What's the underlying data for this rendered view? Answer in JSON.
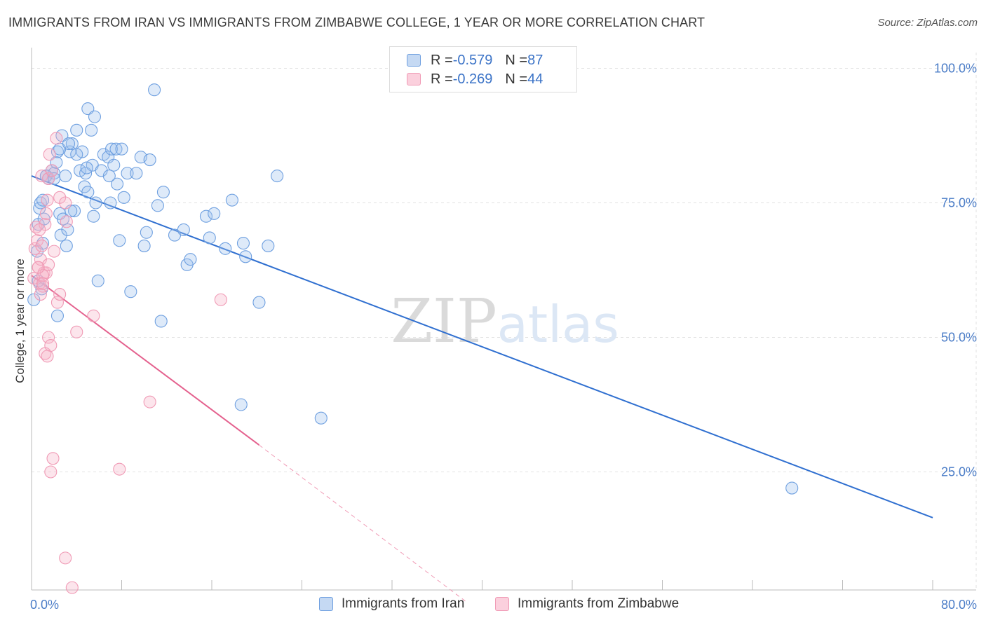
{
  "title": "IMMIGRANTS FROM IRAN VS IMMIGRANTS FROM ZIMBABWE COLLEGE, 1 YEAR OR MORE CORRELATION CHART",
  "source": "Source: ZipAtlas.com",
  "watermark": "ZIPatlas",
  "colors": {
    "iran": "#6fa0e0",
    "iran_line": "#2f6fd0",
    "zimbabwe": "#f09ab5",
    "zimbabwe_line": "#e4618e",
    "tick_text": "#4a7cc7"
  },
  "legend": {
    "rows": [
      {
        "r_label": "R = ",
        "r_value": "-0.579",
        "n_label": "N = ",
        "n_value": "87"
      },
      {
        "r_label": "R = ",
        "r_value": "-0.269",
        "n_label": "N = ",
        "n_value": "44"
      }
    ]
  },
  "bottom_legend": {
    "iran": "Immigrants from Iran",
    "zimbabwe": "Immigrants from Zimbabwe"
  },
  "chart_data": {
    "type": "scatter",
    "title": "IMMIGRANTS FROM IRAN VS IMMIGRANTS FROM ZIMBABWE COLLEGE, 1 YEAR OR MORE CORRELATION CHART",
    "ylabel": "College, 1 year or more",
    "xlabel": "",
    "xlim": [
      0,
      80
    ],
    "ylim": [
      0,
      104
    ],
    "x_tick_labels": [
      "0.0%",
      "80.0%"
    ],
    "y_ticks": [
      25,
      50,
      75,
      100
    ],
    "y_tick_labels": [
      "25.0%",
      "50.0%",
      "75.0%",
      "100.0%"
    ],
    "grid": true,
    "legend_position": "top-center",
    "series": [
      {
        "name": "Immigrants from Iran",
        "R": -0.579,
        "N": 87,
        "trend": {
          "x": [
            0,
            80
          ],
          "y": [
            80.0,
            16.5
          ]
        },
        "points": [
          [
            0.2,
            57.0
          ],
          [
            0.5,
            66.0
          ],
          [
            0.6,
            71.0
          ],
          [
            0.7,
            74.0
          ],
          [
            0.8,
            75.0
          ],
          [
            1.0,
            75.5
          ],
          [
            0.9,
            59.0
          ],
          [
            1.1,
            72.0
          ],
          [
            1.3,
            80.0
          ],
          [
            1.5,
            79.5
          ],
          [
            1.8,
            81.0
          ],
          [
            2.0,
            80.5
          ],
          [
            2.2,
            82.5
          ],
          [
            2.3,
            84.5
          ],
          [
            2.5,
            73.0
          ],
          [
            2.6,
            69.0
          ],
          [
            2.7,
            87.5
          ],
          [
            2.8,
            72.0
          ],
          [
            3.0,
            80.0
          ],
          [
            3.1,
            67.0
          ],
          [
            3.2,
            70.0
          ],
          [
            3.4,
            84.5
          ],
          [
            3.6,
            86.0
          ],
          [
            3.8,
            73.5
          ],
          [
            4.0,
            88.5
          ],
          [
            4.3,
            81.0
          ],
          [
            4.5,
            84.5
          ],
          [
            4.7,
            78.0
          ],
          [
            4.8,
            80.5
          ],
          [
            5.0,
            77.0
          ],
          [
            5.0,
            92.5
          ],
          [
            5.3,
            88.5
          ],
          [
            5.4,
            82.0
          ],
          [
            5.5,
            72.5
          ],
          [
            5.6,
            91.0
          ],
          [
            5.7,
            75.0
          ],
          [
            5.9,
            60.5
          ],
          [
            6.2,
            81.0
          ],
          [
            6.4,
            84.0
          ],
          [
            6.8,
            83.5
          ],
          [
            7.0,
            75.0
          ],
          [
            7.1,
            85.0
          ],
          [
            7.3,
            82.0
          ],
          [
            7.5,
            85.0
          ],
          [
            7.6,
            78.5
          ],
          [
            7.8,
            68.0
          ],
          [
            8.0,
            85.0
          ],
          [
            8.2,
            76.0
          ],
          [
            8.5,
            80.5
          ],
          [
            8.8,
            58.5
          ],
          [
            9.3,
            80.5
          ],
          [
            9.7,
            83.5
          ],
          [
            10.0,
            67.0
          ],
          [
            10.2,
            69.5
          ],
          [
            10.5,
            83.0
          ],
          [
            10.9,
            96.0
          ],
          [
            11.2,
            74.5
          ],
          [
            11.5,
            53.0
          ],
          [
            11.7,
            77.0
          ],
          [
            12.7,
            69.0
          ],
          [
            13.5,
            70.0
          ],
          [
            13.8,
            63.5
          ],
          [
            14.1,
            64.5
          ],
          [
            15.5,
            72.5
          ],
          [
            15.8,
            68.5
          ],
          [
            16.2,
            73.0
          ],
          [
            17.2,
            66.5
          ],
          [
            17.8,
            75.5
          ],
          [
            18.6,
            37.5
          ],
          [
            18.8,
            67.5
          ],
          [
            19.0,
            65.0
          ],
          [
            20.2,
            56.5
          ],
          [
            21.0,
            67.0
          ],
          [
            21.8,
            80.0
          ],
          [
            25.7,
            35.0
          ],
          [
            67.5,
            22.0
          ],
          [
            0.6,
            60.5
          ],
          [
            2.3,
            54.0
          ],
          [
            1.3,
            80.0
          ],
          [
            3.5,
            73.5
          ],
          [
            4.9,
            81.5
          ],
          [
            6.9,
            80.0
          ],
          [
            2.5,
            85.0
          ],
          [
            1.0,
            67.5
          ],
          [
            2.0,
            79.5
          ],
          [
            4.0,
            84.0
          ],
          [
            3.3,
            86.0
          ]
        ]
      },
      {
        "name": "Immigrants from Zimbabwe",
        "R": -0.269,
        "N": 44,
        "trend": {
          "x": [
            0,
            20.2
          ],
          "y": [
            61.5,
            30.0
          ],
          "dashed_to": {
            "x": 38.5,
            "y": 1.0
          }
        },
        "points": [
          [
            0.2,
            61.0
          ],
          [
            0.3,
            66.5
          ],
          [
            0.4,
            70.5
          ],
          [
            0.5,
            68.0
          ],
          [
            0.6,
            63.0
          ],
          [
            0.7,
            60.0
          ],
          [
            0.8,
            64.5
          ],
          [
            0.9,
            67.0
          ],
          [
            1.0,
            59.5
          ],
          [
            1.1,
            62.0
          ],
          [
            1.2,
            71.0
          ],
          [
            1.3,
            73.0
          ],
          [
            1.4,
            75.5
          ],
          [
            0.8,
            58.0
          ],
          [
            0.9,
            80.0
          ],
          [
            1.5,
            79.5
          ],
          [
            1.6,
            84.0
          ],
          [
            1.8,
            81.0
          ],
          [
            2.0,
            66.0
          ],
          [
            2.2,
            87.0
          ],
          [
            2.5,
            76.0
          ],
          [
            1.3,
            62.0
          ],
          [
            1.5,
            63.5
          ],
          [
            1.0,
            61.5
          ],
          [
            2.3,
            56.5
          ],
          [
            2.5,
            58.0
          ],
          [
            1.2,
            47.0
          ],
          [
            1.5,
            50.0
          ],
          [
            1.7,
            48.5
          ],
          [
            1.4,
            46.5
          ],
          [
            3.0,
            75.0
          ],
          [
            3.1,
            71.5
          ],
          [
            4.0,
            51.0
          ],
          [
            5.5,
            54.0
          ],
          [
            7.8,
            25.5
          ],
          [
            10.5,
            38.0
          ],
          [
            16.8,
            57.0
          ],
          [
            1.9,
            27.5
          ],
          [
            1.7,
            25.0
          ],
          [
            3.0,
            9.0
          ],
          [
            3.6,
            3.5
          ],
          [
            0.6,
            63.0
          ],
          [
            1.0,
            60.0
          ],
          [
            0.7,
            70.0
          ]
        ]
      }
    ]
  }
}
